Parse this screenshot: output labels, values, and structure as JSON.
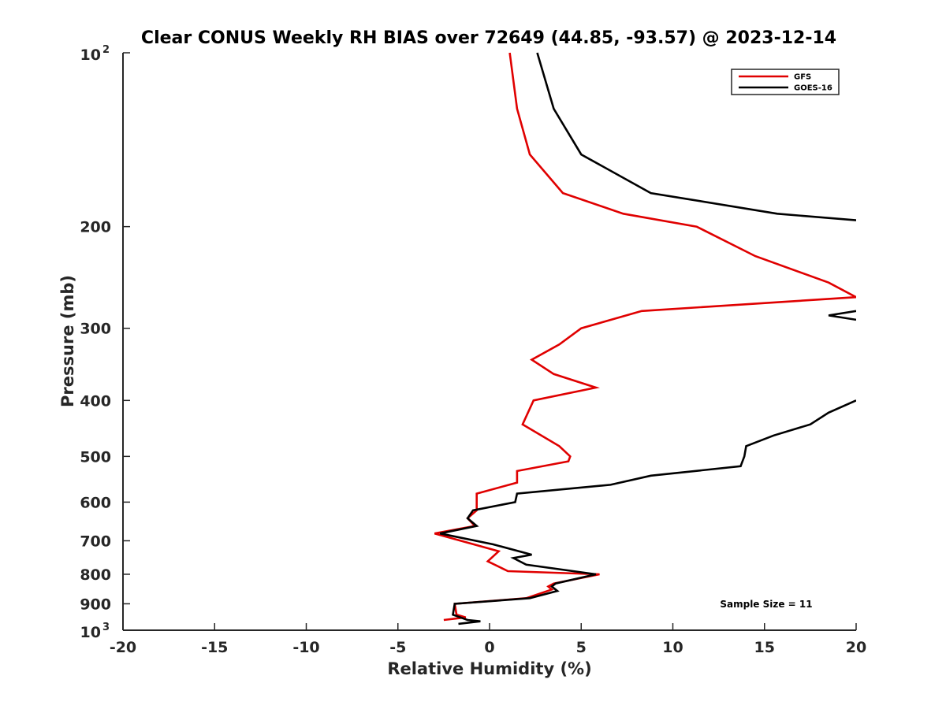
{
  "chart_data": {
    "type": "line",
    "title": "Clear CONUS Weekly RH BIAS over 72649 (44.85, -93.57) @ 2023-12-14",
    "xlabel": "Relative Humidity (%)",
    "ylabel": "Pressure (mb)",
    "xlim": [
      -20,
      20
    ],
    "ylim": [
      100,
      1000
    ],
    "y_scale": "log",
    "y_reversed": true,
    "x_ticks": [
      "-20",
      "-15",
      "-10",
      "-5",
      "0",
      "5",
      "10",
      "15",
      "20"
    ],
    "y_ticks": [
      {
        "value": 100,
        "base": "10",
        "exp": "2"
      },
      {
        "value": 200,
        "label": "200"
      },
      {
        "value": 300,
        "label": "300"
      },
      {
        "value": 400,
        "label": "400"
      },
      {
        "value": 500,
        "label": "500"
      },
      {
        "value": 600,
        "label": "600"
      },
      {
        "value": 700,
        "label": "700"
      },
      {
        "value": 800,
        "label": "800"
      },
      {
        "value": 900,
        "label": "900"
      },
      {
        "value": 1000,
        "base": "10",
        "exp": "3"
      }
    ],
    "grid": false,
    "legend_position": "top-right",
    "annotation": "Sample Size = 11",
    "series": [
      {
        "name": "GFS",
        "color": "#e00000",
        "points": [
          [
            1.1,
            100
          ],
          [
            1.5,
            125
          ],
          [
            2.2,
            150
          ],
          [
            4.0,
            175
          ],
          [
            7.3,
            190
          ],
          [
            11.3,
            200
          ],
          [
            14.5,
            225
          ],
          [
            18.5,
            250
          ],
          [
            20.0,
            265
          ],
          [
            8.3,
            280
          ],
          [
            5.0,
            300
          ],
          [
            3.8,
            320
          ],
          [
            2.3,
            340
          ],
          [
            3.5,
            360
          ],
          [
            5.8,
            380
          ],
          [
            2.4,
            400
          ],
          [
            1.8,
            440
          ],
          [
            3.8,
            480
          ],
          [
            4.4,
            500
          ],
          [
            4.3,
            510
          ],
          [
            1.5,
            530
          ],
          [
            1.5,
            555
          ],
          [
            -0.7,
            580
          ],
          [
            -0.7,
            620
          ],
          [
            -1.2,
            640
          ],
          [
            -0.8,
            660
          ],
          [
            -3.0,
            680
          ],
          [
            0.5,
            730
          ],
          [
            -0.1,
            760
          ],
          [
            1.0,
            790
          ],
          [
            6.0,
            800
          ],
          [
            3.5,
            830
          ],
          [
            3.2,
            840
          ],
          [
            3.4,
            850
          ],
          [
            2.0,
            880
          ],
          [
            -1.9,
            900
          ],
          [
            -1.8,
            940
          ],
          [
            -1.3,
            950
          ],
          [
            -2.5,
            960
          ]
        ]
      },
      {
        "name": "GOES-16",
        "color": "#000000",
        "segments": [
          [
            [
              2.6,
              100
            ],
            [
              3.5,
              125
            ],
            [
              5.0,
              150
            ],
            [
              8.8,
              175
            ],
            [
              15.7,
              190
            ],
            [
              20.0,
              195
            ]
          ],
          [
            [
              20.0,
              280
            ],
            [
              18.5,
              285
            ],
            [
              20.0,
              290
            ]
          ],
          [
            [
              20.0,
              400
            ],
            [
              18.5,
              420
            ],
            [
              17.5,
              440
            ],
            [
              15.5,
              460
            ],
            [
              14.0,
              480
            ],
            [
              13.9,
              500
            ],
            [
              13.7,
              520
            ],
            [
              8.8,
              540
            ],
            [
              6.6,
              560
            ],
            [
              1.5,
              580
            ],
            [
              1.4,
              600
            ],
            [
              -0.9,
              620
            ],
            [
              -1.2,
              640
            ],
            [
              -0.7,
              660
            ],
            [
              -2.7,
              680
            ],
            [
              0.2,
              710
            ],
            [
              2.3,
              740
            ],
            [
              1.3,
              750
            ],
            [
              2.0,
              770
            ],
            [
              5.8,
              800
            ],
            [
              3.6,
              830
            ],
            [
              3.4,
              840
            ],
            [
              3.7,
              855
            ],
            [
              2.2,
              880
            ],
            [
              -1.9,
              900
            ],
            [
              -2.0,
              940
            ],
            [
              -1.2,
              960
            ],
            [
              -0.5,
              965
            ],
            [
              -1.7,
              975
            ]
          ]
        ]
      }
    ]
  }
}
